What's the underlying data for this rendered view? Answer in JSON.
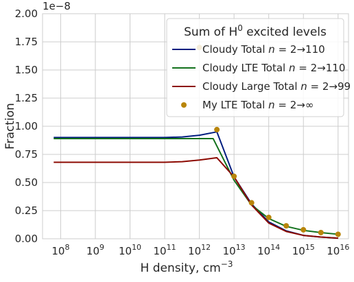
{
  "chart_data": {
    "type": "line",
    "title": "",
    "xlabel": "H density, cm",
    "xlabel_exponent": "−3",
    "ylabel": "Fraction",
    "y_offset_label": "1e−8",
    "x_scale": "log",
    "xlim": [
      30000000.0,
      2e+16
    ],
    "ylim": [
      0,
      2e-08
    ],
    "x_tick_labels": [
      {
        "base": "10",
        "exp": "8",
        "value": 100000000.0
      },
      {
        "base": "10",
        "exp": "9",
        "value": 1000000000.0
      },
      {
        "base": "10",
        "exp": "10",
        "value": 10000000000.0
      },
      {
        "base": "10",
        "exp": "11",
        "value": 100000000000.0
      },
      {
        "base": "10",
        "exp": "12",
        "value": 1000000000000.0
      },
      {
        "base": "10",
        "exp": "13",
        "value": 10000000000000.0
      },
      {
        "base": "10",
        "exp": "14",
        "value": 100000000000000.0
      },
      {
        "base": "10",
        "exp": "15",
        "value": 1000000000000000.0
      },
      {
        "base": "10",
        "exp": "16",
        "value": 1e+16
      }
    ],
    "y_tick_labels": [
      "0.00",
      "0.25",
      "0.50",
      "0.75",
      "1.00",
      "1.25",
      "1.50",
      "1.75",
      "2.00"
    ],
    "y_tick_values": [
      0,
      2.5e-09,
      5e-09,
      7.5e-09,
      1e-08,
      1.25e-08,
      1.5e-08,
      1.75e-08,
      2e-08
    ],
    "grid": true,
    "legend": {
      "placement": "top-right",
      "title_prefix": "Sum of H",
      "title_sup": "0",
      "title_suffix": " excited levels"
    },
    "series": [
      {
        "name_prefix": "Cloudy Total ",
        "name_var": "n",
        "name_suffix": " = 2→110",
        "kind": "line",
        "color": "#001c7f",
        "x": [
          63000000.0,
          100000000000.0,
          320000000000.0,
          1000000000000.0,
          3200000000000.0,
          10000000000000.0,
          32000000000000.0,
          100000000000000.0,
          320000000000000.0,
          1000000000000000.0,
          3200000000000000.0,
          1e+16
        ],
        "y": [
          9e-09,
          9e-09,
          9.05e-09,
          9.2e-09,
          9.5e-09,
          5.5e-09,
          3.1e-09,
          1.5e-09,
          7e-10,
          3e-10,
          1.5e-10,
          5e-11
        ]
      },
      {
        "name_prefix": "Cloudy LTE Total ",
        "name_var": "n",
        "name_suffix": " = 2→110",
        "kind": "line",
        "color": "#12711c",
        "x": [
          63000000.0,
          1000000000000.0,
          2500000000000.0,
          10000000000000.0,
          32000000000000.0,
          100000000000000.0,
          320000000000000.0,
          1000000000000000.0,
          3200000000000000.0,
          1e+16
        ],
        "y": [
          8.9e-09,
          8.9e-09,
          8.9e-09,
          5.2e-09,
          3e-09,
          1.8e-09,
          1.1e-09,
          7.5e-10,
          5.5e-10,
          4e-10
        ]
      },
      {
        "name_prefix": "Cloudy Large Total ",
        "name_var": "n",
        "name_suffix": " = 2→99",
        "kind": "line",
        "color": "#8c0800",
        "x": [
          63000000.0,
          100000000000.0,
          320000000000.0,
          1000000000000.0,
          3200000000000.0,
          10000000000000.0,
          32000000000000.0,
          100000000000000.0,
          320000000000000.0,
          1000000000000000.0,
          3200000000000000.0,
          1e+16
        ],
        "y": [
          6.8e-09,
          6.8e-09,
          6.85e-09,
          7e-09,
          7.2e-09,
          5.5e-09,
          3e-09,
          1.4e-09,
          6.5e-10,
          3e-10,
          1.5e-10,
          5e-11
        ]
      },
      {
        "name_prefix": "My LTE Total ",
        "name_var": "n",
        "name_suffix": " = 2→∞",
        "kind": "scatter",
        "color": "#b8850a",
        "x": [
          1000000000000.0,
          3200000000000.0,
          10000000000000.0,
          32000000000000.0,
          100000000000000.0,
          320000000000000.0,
          1000000000000000.0,
          3200000000000000.0,
          1e+16
        ],
        "y": [
          1.7e-08,
          9.7e-09,
          5.55e-09,
          3.2e-09,
          1.9e-09,
          1.15e-09,
          8e-10,
          5.5e-10,
          4e-10
        ]
      }
    ]
  }
}
